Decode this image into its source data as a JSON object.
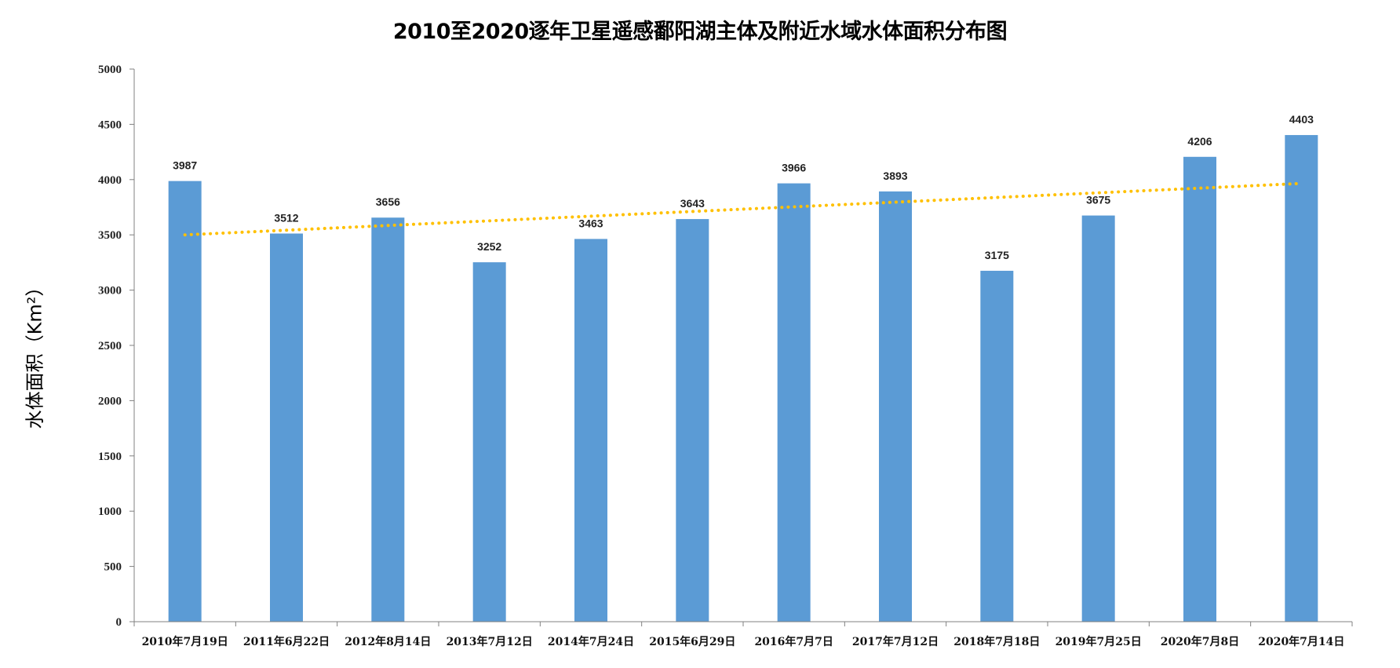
{
  "chart_data": {
    "type": "bar",
    "title": "2010至2020逐年卫星遥感鄱阳湖主体及附近水域水体面积分布图",
    "xlabel": "",
    "ylabel": "水体面积（Km²）",
    "ylim": [
      0,
      5000
    ],
    "yticks": [
      0,
      500,
      1000,
      1500,
      2000,
      2500,
      3000,
      3500,
      4000,
      4500,
      5000
    ],
    "grid": false,
    "legend": "none",
    "categories": [
      "2010年7月19日",
      "2011年6月22日",
      "2012年8月14日",
      "2013年7月12日",
      "2014年7月24日",
      "2015年6月29日",
      "2016年7月7日",
      "2017年7月12日",
      "2018年7月18日",
      "2019年7月25日",
      "2020年7月8日",
      "2020年7月14日"
    ],
    "values": [
      3987,
      3512,
      3656,
      3252,
      3463,
      3643,
      3966,
      3893,
      3175,
      3675,
      4206,
      4403
    ],
    "trendline": {
      "type": "linear",
      "style": "dotted",
      "start": 3500,
      "end": 3965
    },
    "colors": {
      "bar": "#5b9bd5",
      "trendline": "#ffc000",
      "axis": "#808080"
    }
  }
}
